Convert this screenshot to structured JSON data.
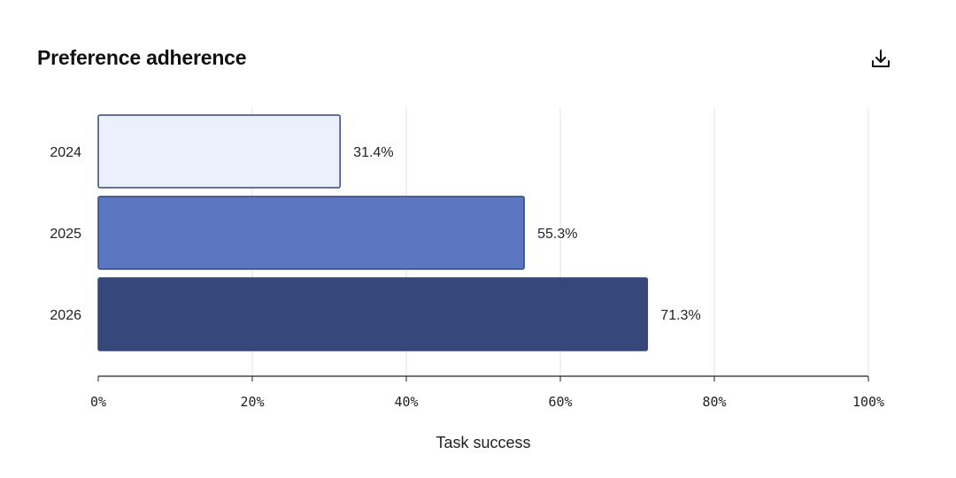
{
  "header": {
    "title": "Preference adherence",
    "download_icon": "download-icon"
  },
  "chart_data": {
    "type": "bar",
    "orientation": "horizontal",
    "categories": [
      "2024",
      "2025",
      "2026"
    ],
    "values": [
      31.4,
      55.3,
      71.3
    ],
    "value_labels": [
      "31.4%",
      "55.3%",
      "71.3%"
    ],
    "colors": [
      "#eaf1fc",
      "#5b77c2",
      "#35477b"
    ],
    "stroke": "#35477b",
    "xlabel": "Task success",
    "ylabel": "",
    "xlim": [
      0,
      100
    ],
    "xticks": [
      0,
      20,
      40,
      60,
      80,
      100
    ],
    "xtick_labels": [
      "0%",
      "20%",
      "40%",
      "60%",
      "80%",
      "100%"
    ],
    "grid": "vertical",
    "legend": "none"
  }
}
